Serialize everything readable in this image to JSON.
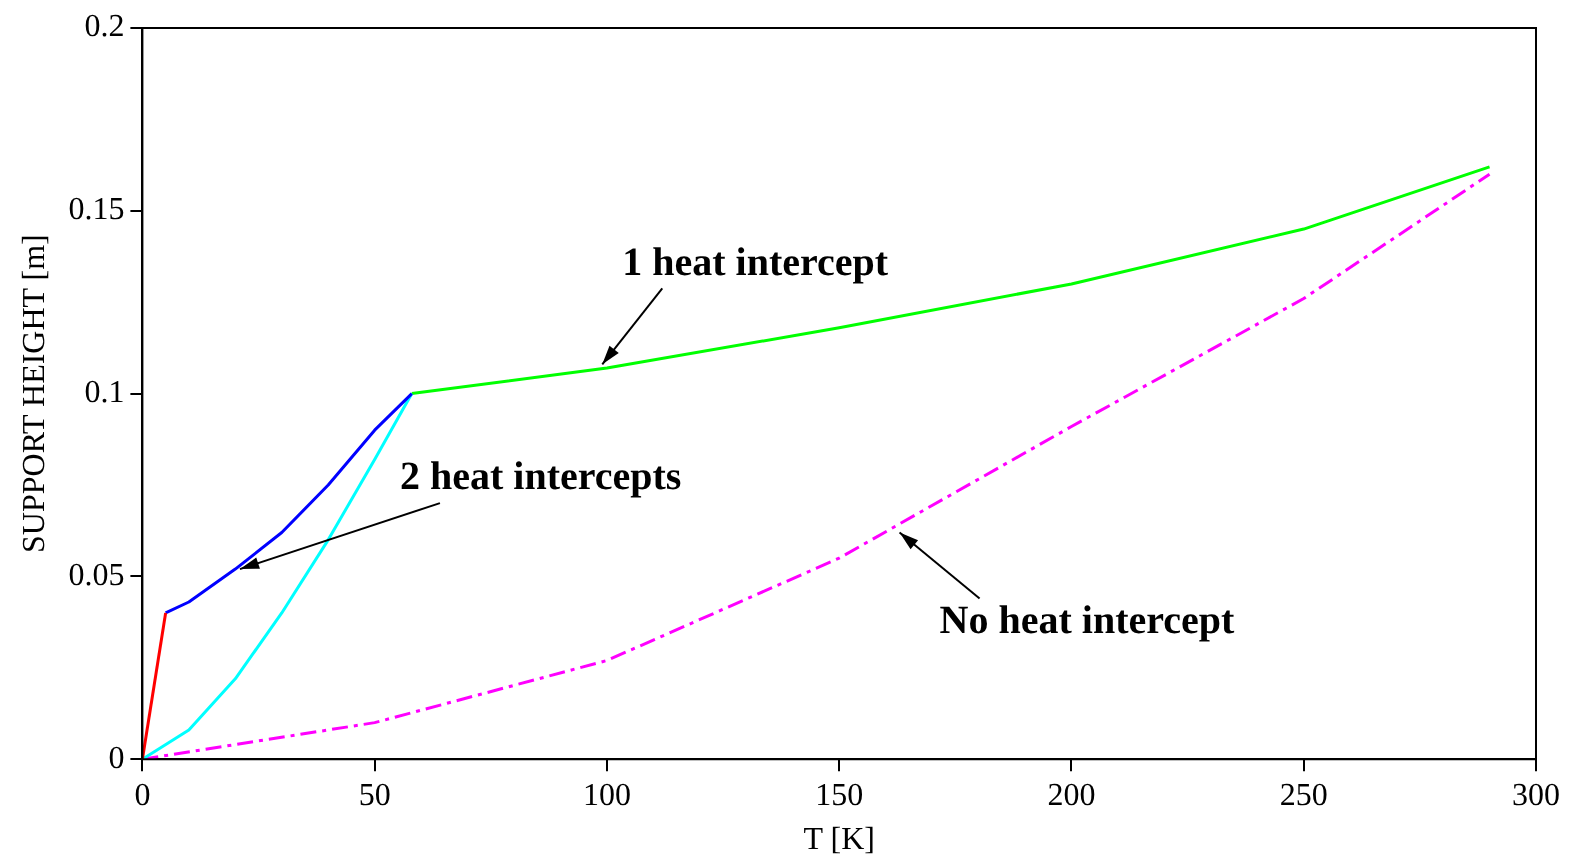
{
  "chart_data": {
    "type": "line",
    "xlabel": "T [K]",
    "ylabel": "SUPPORT HEIGHT [m]",
    "xlim": [
      0,
      300
    ],
    "xticks": [
      0,
      50,
      100,
      150,
      200,
      250,
      300
    ],
    "ylim": [
      0,
      0.2
    ],
    "yticks": [
      0,
      0.05,
      0.1,
      0.15,
      0.2
    ],
    "grid": false,
    "legend": false,
    "marker": "none",
    "series": [
      {
        "color": "#ff0000",
        "x": [
          0,
          5
        ],
        "values": [
          0,
          0.04
        ]
      },
      {
        "color": "#0000ff",
        "x": [
          5,
          10,
          20,
          30,
          40,
          50,
          58
        ],
        "values": [
          0.04,
          0.043,
          0.052,
          0.062,
          0.075,
          0.09,
          0.1
        ]
      },
      {
        "color": "#00ffff",
        "x": [
          0,
          10,
          20,
          30,
          40,
          50,
          58
        ],
        "values": [
          0,
          0.008,
          0.022,
          0.04,
          0.06,
          0.082,
          0.1
        ]
      },
      {
        "color": "#00ff00",
        "x": [
          58,
          100,
          150,
          200,
          250,
          290
        ],
        "values": [
          0.1,
          0.107,
          0.118,
          0.13,
          0.145,
          0.162
        ]
      },
      {
        "color": "#ff00ff",
        "line_style": "dashed",
        "x": [
          0,
          50,
          100,
          150,
          200,
          250,
          290
        ],
        "values": [
          0,
          0.01,
          0.027,
          0.055,
          0.091,
          0.126,
          0.16
        ]
      }
    ],
    "annotations": [
      {
        "text": "1 heat intercept",
        "x": 99,
        "y": 0.108
      },
      {
        "text": "2 heat intercepts",
        "x": 21,
        "y": 0.052
      },
      {
        "text": "No heat intercept",
        "x": 163,
        "y": 0.062
      }
    ]
  }
}
